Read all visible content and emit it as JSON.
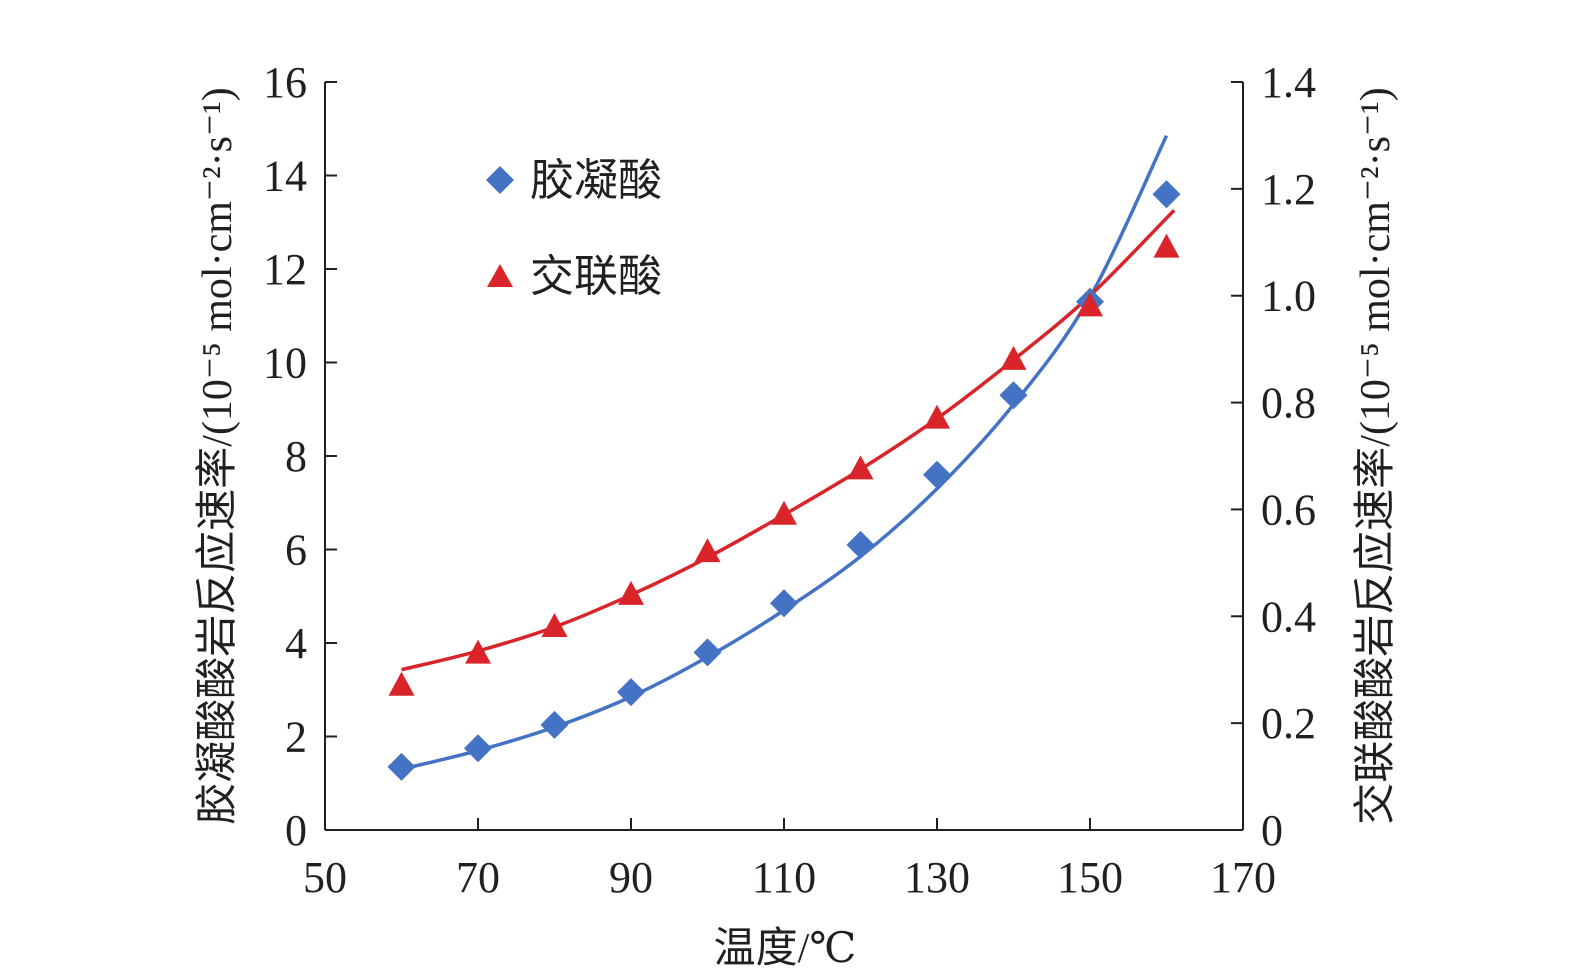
{
  "chart_data": {
    "type": "scatter",
    "title": "",
    "x": [
      60,
      70,
      80,
      90,
      100,
      110,
      120,
      130,
      140,
      150,
      160
    ],
    "xlabel": "温度/℃",
    "xlim": [
      50,
      170
    ],
    "xticks": [
      50,
      70,
      90,
      110,
      130,
      150,
      170
    ],
    "ylabel": "胶凝酸酸岩反应速率/(10⁻⁵ mol·cm⁻²·s⁻¹)",
    "ylim": [
      0,
      16
    ],
    "yticks": [
      0,
      2,
      4,
      6,
      8,
      10,
      12,
      14,
      16
    ],
    "y2label": "交联酸酸岩反应速率/(10⁻⁵ mol·cm⁻²·s⁻¹)",
    "y2lim": [
      0,
      1.4
    ],
    "y2ticks": [
      "0",
      "0.2",
      "0.4",
      "0.6",
      "0.8",
      "1.0",
      "1.2",
      "1.4"
    ],
    "legend_position": "top-left",
    "series": [
      {
        "name": "胶凝酸",
        "axis": "left",
        "marker": "diamond",
        "color": "#4472c4",
        "values": [
          1.35,
          1.75,
          2.25,
          2.95,
          3.8,
          4.85,
          6.1,
          7.6,
          9.3,
          11.3,
          13.6
        ],
        "fit_curve": [
          1.3,
          1.7,
          2.2,
          2.85,
          3.7,
          4.7,
          5.85,
          7.3,
          9.1,
          11.4,
          14.85
        ],
        "fit_x_end": 160
      },
      {
        "name": "交联酸",
        "axis": "right",
        "marker": "triangle",
        "color": "#d9252a",
        "values": [
          0.27,
          0.33,
          0.38,
          0.44,
          0.52,
          0.59,
          0.675,
          0.77,
          0.88,
          0.98,
          1.09
        ],
        "fit_curve": [
          0.3,
          0.335,
          0.38,
          0.44,
          0.51,
          0.59,
          0.675,
          0.77,
          0.88,
          1.0,
          1.16
        ],
        "fit_x_end": 161
      }
    ]
  }
}
